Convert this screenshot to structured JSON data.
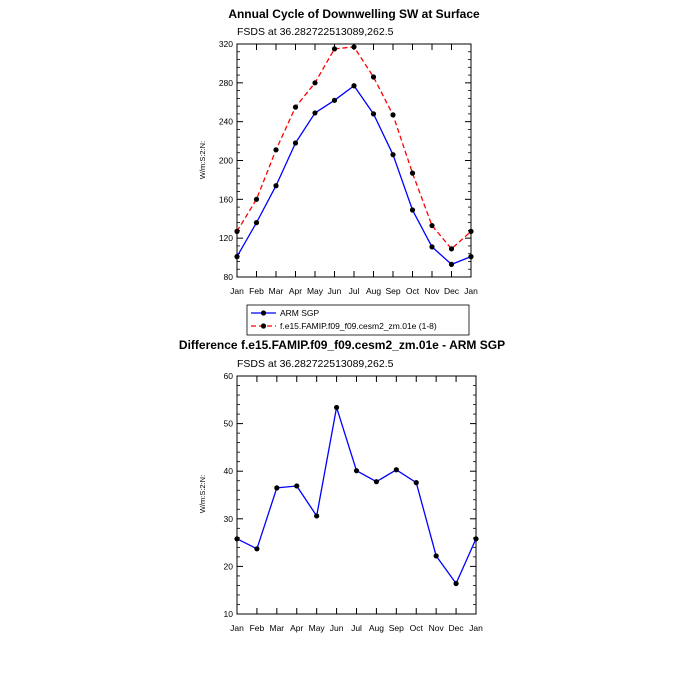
{
  "chart_data": [
    {
      "type": "line",
      "title": "Annual Cycle of Downwelling SW at Surface",
      "subtitle": "FSDS at 36.282722513089,262.5",
      "xlabel": "",
      "ylabel": "W/m:S:2:N:",
      "categories": [
        "Jan",
        "Feb",
        "Mar",
        "Apr",
        "May",
        "Jun",
        "Jul",
        "Aug",
        "Sep",
        "Oct",
        "Nov",
        "Dec",
        "Jan"
      ],
      "ylim": [
        80,
        320
      ],
      "yticks": [
        80,
        120,
        160,
        200,
        240,
        280,
        320
      ],
      "grid": false,
      "legend_position": "bottom",
      "series": [
        {
          "name": "ARM SGP",
          "color": "#0000ff",
          "dash": "solid",
          "values": [
            101,
            136,
            174,
            218,
            249,
            262,
            277,
            248,
            206,
            149,
            111,
            93,
            101
          ]
        },
        {
          "name": "f.e15.FAMIP.f09_f09.cesm2_zm.01e (1-8)",
          "color": "#ff0000",
          "dash": "dashed",
          "values": [
            127,
            160,
            211,
            255,
            280,
            315,
            317,
            286,
            247,
            187,
            133,
            109,
            127
          ]
        }
      ]
    },
    {
      "type": "line",
      "title": "Difference f.e15.FAMIP.f09_f09.cesm2_zm.01e - ARM SGP",
      "subtitle": "FSDS at 36.282722513089,262.5",
      "xlabel": "",
      "ylabel": "W/m:S:2:N:",
      "categories": [
        "Jan",
        "Feb",
        "Mar",
        "Apr",
        "May",
        "Jun",
        "Jul",
        "Aug",
        "Sep",
        "Oct",
        "Nov",
        "Dec",
        "Jan"
      ],
      "ylim": [
        10,
        60
      ],
      "yticks": [
        10,
        20,
        30,
        40,
        50,
        60
      ],
      "grid": false,
      "series": [
        {
          "color": "#0000ff",
          "dash": "solid",
          "values": [
            25.8,
            23.7,
            36.5,
            36.9,
            30.6,
            53.4,
            40.1,
            37.8,
            40.3,
            37.6,
            22.2,
            16.4,
            25.8
          ]
        }
      ]
    }
  ]
}
